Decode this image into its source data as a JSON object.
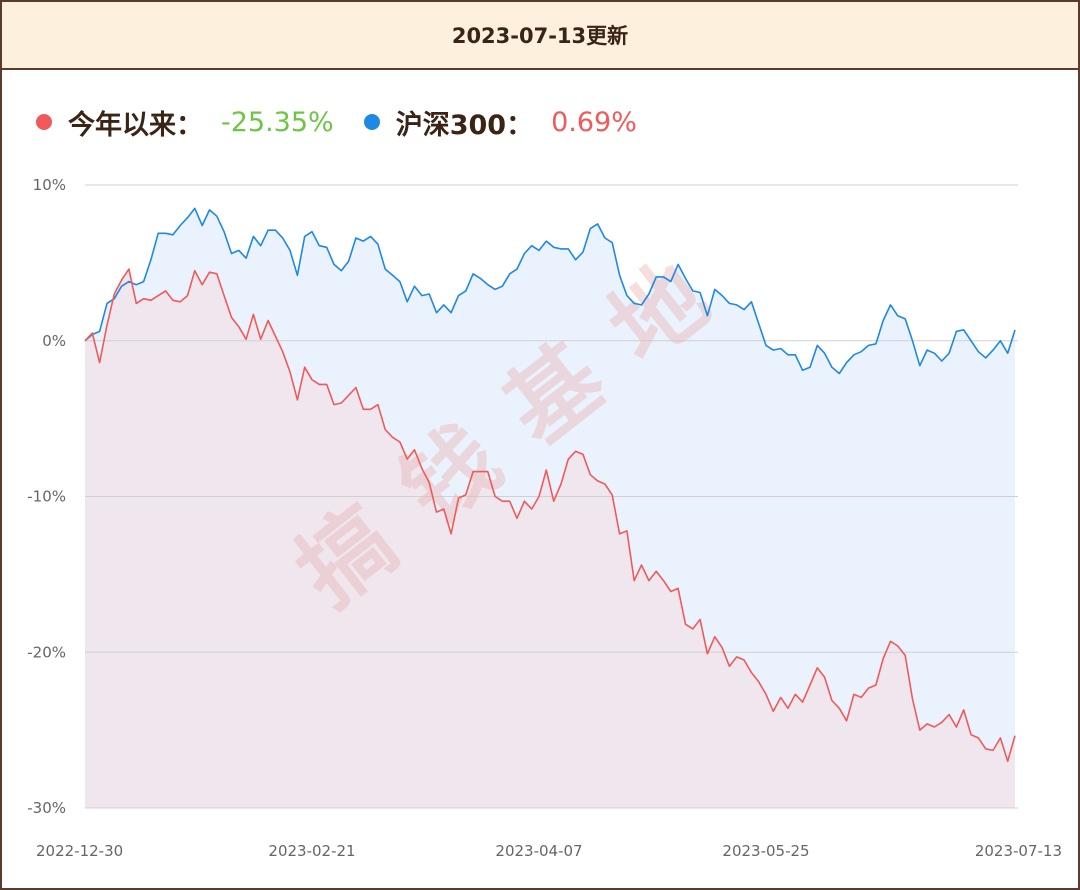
{
  "header": {
    "title": "2023-07-13更新"
  },
  "legend": [
    {
      "label": "今年以来：",
      "value": "-25.35%",
      "dot_color": "#f05a5a",
      "value_color": "#6cc644"
    },
    {
      "label": "沪深300：",
      "value": "0.69%",
      "dot_color": "#1e88e5",
      "value_color": "#f05a5a"
    }
  ],
  "watermark": "搞钱基地",
  "chart_data": {
    "type": "area",
    "title": "",
    "xlabel": "",
    "ylabel": "",
    "ylim": [
      -30,
      10
    ],
    "yticks": [
      10,
      0,
      -10,
      -20,
      -30
    ],
    "ytick_labels": [
      "10%",
      "0%",
      "-10%",
      "-20%",
      "-30%"
    ],
    "xtick_labels": [
      "2022-12-30",
      "2023-02-21",
      "2023-04-07",
      "2023-05-25",
      "2023-07-13"
    ],
    "xtick_index": [
      0,
      31,
      62,
      93,
      126
    ],
    "grid": true,
    "series": [
      {
        "name": "今年以来",
        "color": "#f05a5a",
        "fill": "#efe6ee",
        "values": [
          0,
          0.5,
          -1.4,
          1.0,
          3.0,
          3.9,
          4.6,
          2.4,
          2.7,
          2.6,
          2.9,
          3.2,
          2.6,
          2.5,
          2.9,
          4.5,
          3.6,
          4.4,
          4.3,
          2.9,
          1.5,
          0.9,
          0.1,
          1.7,
          0.1,
          1.3,
          0.3,
          -0.7,
          -2.0,
          -3.8,
          -1.7,
          -2.5,
          -2.8,
          -2.8,
          -4.1,
          -4.0,
          -3.5,
          -3.0,
          -4.4,
          -4.4,
          -4.1,
          -5.7,
          -6.2,
          -6.5,
          -7.6,
          -7.0,
          -8.2,
          -9.1,
          -11.0,
          -10.8,
          -12.4,
          -10.1,
          -9.9,
          -8.4,
          -8.4,
          -8.4,
          -10.0,
          -10.3,
          -10.3,
          -11.4,
          -10.3,
          -10.8,
          -10.0,
          -8.3,
          -10.3,
          -9.2,
          -7.6,
          -7.1,
          -7.3,
          -8.6,
          -9.0,
          -9.2,
          -9.9,
          -12.4,
          -12.2,
          -15.4,
          -14.4,
          -15.4,
          -14.8,
          -15.4,
          -16.1,
          -15.9,
          -18.2,
          -18.5,
          -17.9,
          -20.1,
          -19.0,
          -19.7,
          -20.9,
          -20.3,
          -20.5,
          -21.3,
          -21.9,
          -22.7,
          -23.8,
          -22.9,
          -23.6,
          -22.7,
          -23.2,
          -22.1,
          -21.0,
          -21.6,
          -23.1,
          -23.6,
          -24.4,
          -22.7,
          -22.9,
          -22.3,
          -22.1,
          -20.4,
          -19.3,
          -19.6,
          -20.2,
          -23.0,
          -25.0,
          -24.6,
          -24.8,
          -24.5,
          -24.0,
          -24.8,
          -23.7,
          -25.3,
          -25.5,
          -26.2,
          -26.3,
          -25.5,
          -27.0,
          -25.35
        ]
      },
      {
        "name": "沪深300",
        "color": "#1e88e5",
        "fill": "#eaf3fd",
        "values": [
          0,
          0.4,
          0.6,
          2.4,
          2.7,
          3.5,
          3.8,
          3.6,
          3.8,
          5.2,
          6.9,
          6.9,
          6.8,
          7.4,
          7.9,
          8.5,
          7.4,
          8.4,
          8.0,
          7.0,
          5.6,
          5.8,
          5.3,
          6.7,
          6.1,
          7.1,
          7.1,
          6.6,
          5.8,
          4.2,
          6.7,
          7.0,
          6.1,
          6.0,
          4.9,
          4.5,
          5.1,
          6.6,
          6.4,
          6.7,
          6.2,
          4.6,
          4.2,
          3.8,
          2.5,
          3.5,
          2.9,
          3.0,
          1.8,
          2.3,
          1.8,
          2.9,
          3.2,
          4.3,
          4.0,
          3.6,
          3.3,
          3.5,
          4.3,
          4.6,
          5.6,
          6.1,
          5.8,
          6.4,
          6.0,
          5.9,
          5.9,
          5.2,
          5.7,
          7.2,
          7.5,
          6.6,
          6.3,
          4.2,
          2.9,
          2.4,
          2.3,
          3.0,
          4.1,
          4.1,
          3.8,
          4.9,
          4.0,
          3.2,
          3.1,
          1.6,
          3.3,
          2.9,
          2.4,
          2.3,
          2.0,
          2.5,
          1.1,
          -0.3,
          -0.6,
          -0.5,
          -0.9,
          -0.9,
          -1.9,
          -1.7,
          -0.3,
          -0.8,
          -1.7,
          -2.1,
          -1.4,
          -0.9,
          -0.7,
          -0.3,
          -0.2,
          1.3,
          2.3,
          1.6,
          1.4,
          0.0,
          -1.6,
          -0.6,
          -0.8,
          -1.3,
          -0.8,
          0.6,
          0.7,
          0.0,
          -0.7,
          -1.1,
          -0.6,
          0.0,
          -0.8,
          0.69
        ]
      }
    ]
  }
}
